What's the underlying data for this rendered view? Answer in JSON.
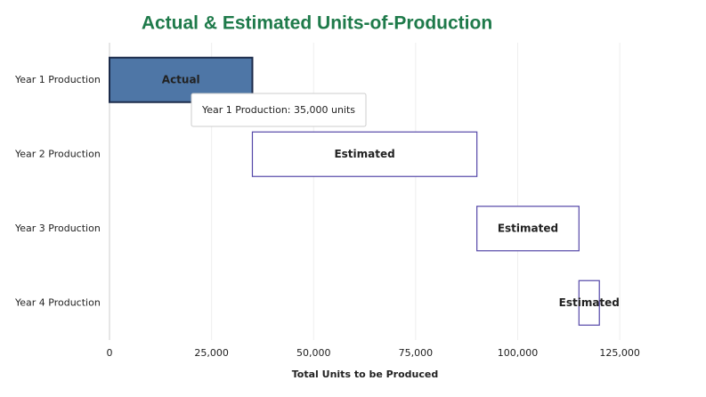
{
  "chart_data": {
    "type": "waterfall-bar",
    "title": "Actual & Estimated Units-of-Production",
    "x_label": "Total Units to be Produced",
    "categories": [
      "Year 1 Production",
      "Year 2 Production",
      "Year 3 Production",
      "Year 4 Production"
    ],
    "values": [
      35000,
      55000,
      25000,
      5000
    ],
    "bar_labels": [
      "Actual",
      "Estimated",
      "Estimated",
      "Estimated"
    ],
    "fills": [
      "#4e76a6",
      "#ffffff",
      "#ffffff",
      "#ffffff"
    ],
    "strokes": [
      "#1c2b4a",
      "#5548a8",
      "#5548a8",
      "#5548a8"
    ],
    "xlim": [
      0,
      135000
    ],
    "xticks": [
      0,
      {
        "value": 25000,
        "label": "25,000"
      },
      {
        "value": 50000,
        "label": "50,000"
      },
      {
        "value": 75000,
        "label": "75,000"
      },
      {
        "value": 100000,
        "label": "100,000"
      },
      {
        "value": 125000,
        "label": "125,000"
      }
    ],
    "grid": true,
    "tooltip": "Year 1 Production: 35,000 units"
  }
}
